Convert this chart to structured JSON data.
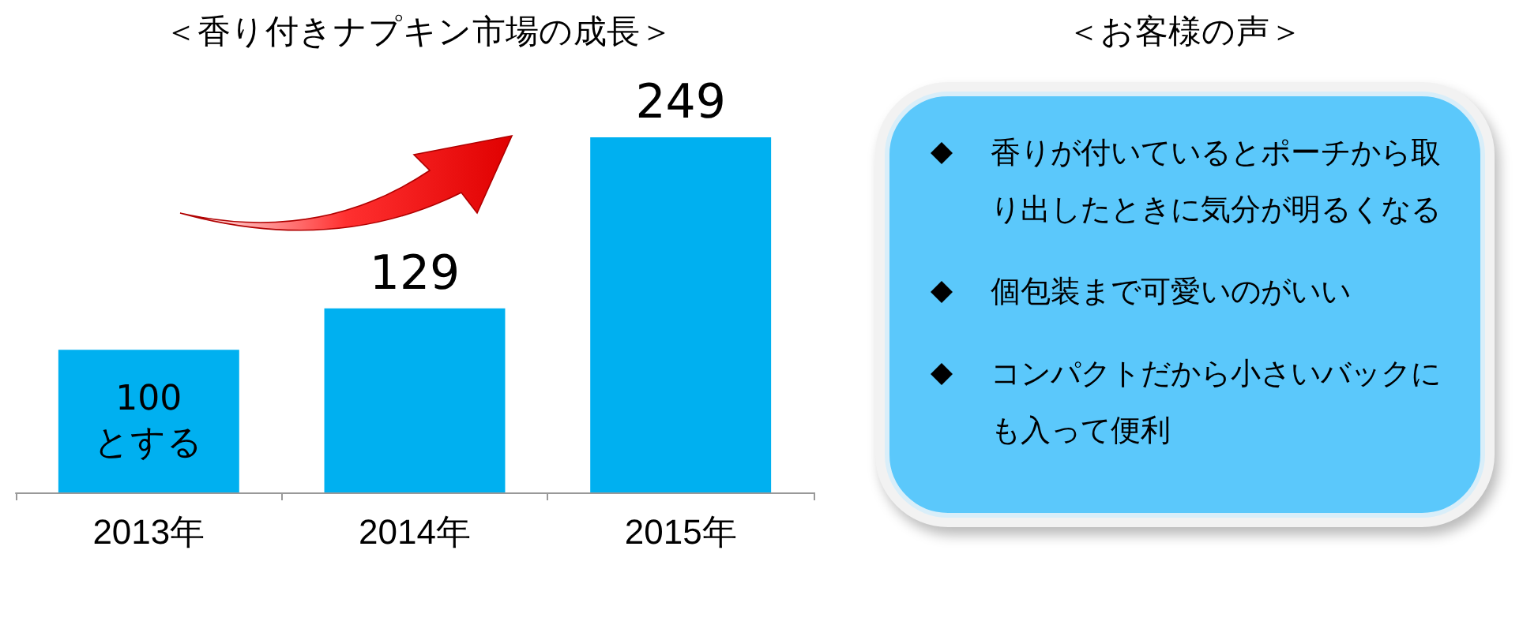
{
  "chart_data": [
    {
      "type": "bar",
      "title": "＜香り付きナプキン市場の成長＞",
      "categories": [
        "2013年",
        "2014年",
        "2015年"
      ],
      "values": [
        100,
        129,
        249
      ],
      "color": "#00b0f0",
      "value_labels": [
        "100\nとする",
        "129",
        "249"
      ]
    },
    {
      "type": "other",
      "title": "＜お客様の声＞",
      "annotations": [
        "香りが付いているとポーチから取り出したときに気分が明るくなる",
        "個包装まで可愛いのがいい",
        "コンパクトだから小さいバックにも入って便利"
      ]
    }
  ]
}
